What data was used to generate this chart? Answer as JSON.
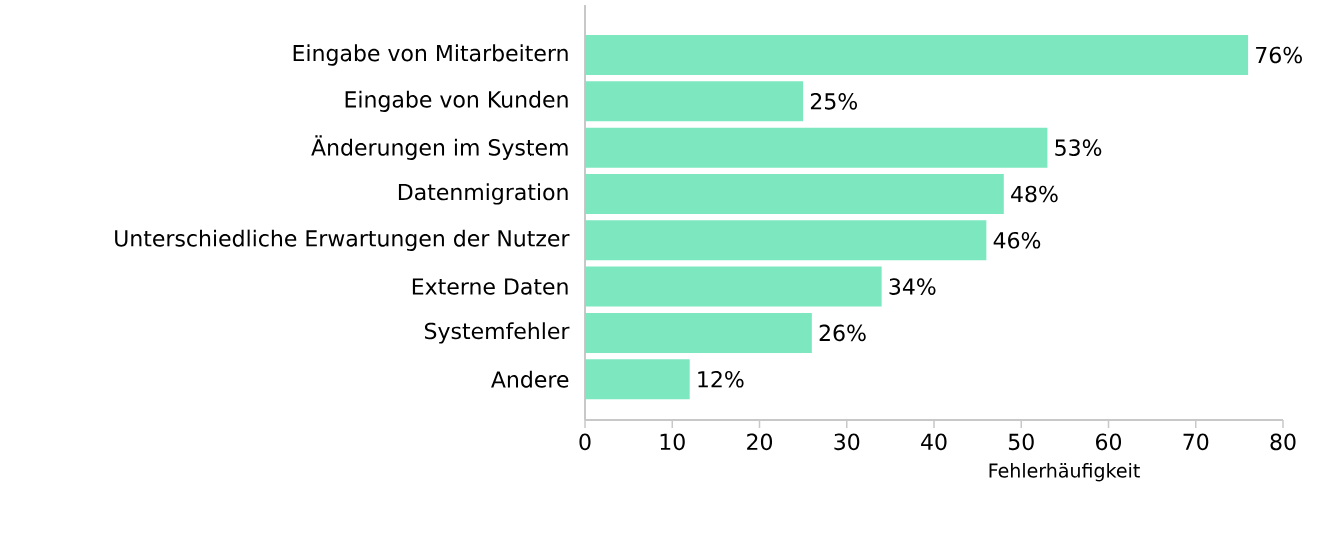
{
  "chart_data": {
    "type": "bar",
    "orientation": "horizontal",
    "xlabel": "Fehlerhäufigkeit",
    "categories": [
      "Eingabe von Mitarbeitern",
      "Eingabe von Kunden",
      "Änderungen im System",
      "Datenmigration",
      "Unterschiedliche Erwartungen der Nutzer",
      "Externe Daten",
      "Systemfehler",
      "Andere"
    ],
    "values": [
      76,
      25,
      53,
      48,
      46,
      34,
      26,
      12
    ],
    "value_labels": [
      "76%",
      "25%",
      "53%",
      "48%",
      "46%",
      "34%",
      "26%",
      "12%"
    ],
    "color": "#7de8c0",
    "xlim": [
      0,
      80
    ],
    "xticks": [
      0,
      10,
      20,
      30,
      40,
      50,
      60,
      70,
      80
    ]
  }
}
